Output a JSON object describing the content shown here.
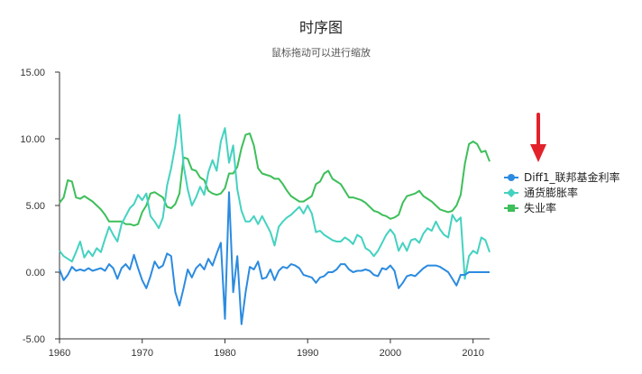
{
  "chart_data": {
    "type": "line",
    "title": "时序图",
    "subtitle": "鼠标拖动可以进行缩放",
    "xlim": [
      1960,
      2012
    ],
    "ylim": [
      -5,
      15
    ],
    "xticks": [
      1960,
      1970,
      1980,
      1990,
      2000,
      2010
    ],
    "yticks": [
      "15.00",
      "10.00",
      "5.00",
      "0.00",
      "-5.00"
    ],
    "legend_position": "right",
    "annotation": "red-down-arrow-pointing-at-legend",
    "series": [
      {
        "name": "Diff1_联邦基金利率",
        "color": "#2b8be0",
        "marker": "circle",
        "x": [
          1960.0,
          1960.5,
          1961.0,
          1961.5,
          1962.0,
          1962.5,
          1963.0,
          1963.5,
          1964.0,
          1964.5,
          1965.0,
          1965.5,
          1966.0,
          1966.5,
          1967.0,
          1967.5,
          1968.0,
          1968.5,
          1969.0,
          1969.5,
          1970.0,
          1970.5,
          1971.0,
          1971.5,
          1972.0,
          1972.5,
          1973.0,
          1973.5,
          1974.0,
          1974.5,
          1975.0,
          1975.5,
          1976.0,
          1976.5,
          1977.0,
          1977.5,
          1978.0,
          1978.5,
          1979.0,
          1979.5,
          1980.0,
          1980.5,
          1981.0,
          1981.5,
          1982.0,
          1982.5,
          1983.0,
          1983.5,
          1984.0,
          1984.5,
          1985.0,
          1985.5,
          1986.0,
          1986.5,
          1987.0,
          1987.5,
          1988.0,
          1988.5,
          1989.0,
          1989.5,
          1990.0,
          1990.5,
          1991.0,
          1991.5,
          1992.0,
          1992.5,
          1993.0,
          1993.5,
          1994.0,
          1994.5,
          1995.0,
          1995.5,
          1996.0,
          1996.5,
          1997.0,
          1997.5,
          1998.0,
          1998.5,
          1999.0,
          1999.5,
          2000.0,
          2000.5,
          2001.0,
          2001.5,
          2002.0,
          2002.5,
          2003.0,
          2003.5,
          2004.0,
          2004.5,
          2005.0,
          2005.5,
          2006.0,
          2006.5,
          2007.0,
          2007.5,
          2008.0,
          2008.5,
          2009.0,
          2009.5,
          2010.0,
          2010.5,
          2011.0,
          2011.5,
          2012.0
        ],
        "values": [
          0.2,
          -0.6,
          -0.2,
          0.4,
          0.1,
          0.2,
          0.1,
          0.3,
          0.1,
          0.2,
          0.3,
          0.1,
          0.6,
          0.3,
          -0.5,
          0.3,
          0.6,
          0.2,
          1.3,
          0.3,
          -0.6,
          -1.2,
          -0.3,
          0.8,
          0.3,
          0.5,
          1.4,
          1.2,
          -1.5,
          -2.5,
          -1.2,
          0.2,
          -0.4,
          0.3,
          0.6,
          0.2,
          1.0,
          0.5,
          1.4,
          2.2,
          -3.5,
          6.0,
          -1.5,
          1.2,
          -3.9,
          -1.5,
          0.4,
          0.2,
          0.8,
          -0.5,
          -0.4,
          0.2,
          -0.6,
          0.1,
          0.4,
          0.3,
          0.6,
          0.5,
          0.3,
          -0.2,
          -0.3,
          -0.4,
          -0.8,
          -0.4,
          -0.3,
          0.0,
          0.0,
          0.2,
          0.6,
          0.6,
          0.2,
          0.0,
          0.1,
          0.1,
          0.2,
          0.1,
          -0.2,
          -0.3,
          0.3,
          0.2,
          0.5,
          0.1,
          -1.2,
          -0.8,
          -0.3,
          -0.2,
          -0.3,
          0.0,
          0.3,
          0.5,
          0.5,
          0.5,
          0.4,
          0.2,
          0.0,
          -0.5,
          -1.0,
          -0.2,
          -0.2,
          0.0,
          0.0,
          0.0,
          0.0,
          0.0,
          0.0
        ]
      },
      {
        "name": "通货膨胀率",
        "color": "#44d2c0",
        "marker": "diamond",
        "x": [
          1960.0,
          1960.5,
          1961.0,
          1961.5,
          1962.0,
          1962.5,
          1963.0,
          1963.5,
          1964.0,
          1964.5,
          1965.0,
          1965.5,
          1966.0,
          1966.5,
          1967.0,
          1967.5,
          1968.0,
          1968.5,
          1969.0,
          1969.5,
          1970.0,
          1970.5,
          1971.0,
          1971.5,
          1972.0,
          1972.5,
          1973.0,
          1973.5,
          1974.0,
          1974.5,
          1975.0,
          1975.5,
          1976.0,
          1976.5,
          1977.0,
          1977.5,
          1978.0,
          1978.5,
          1979.0,
          1979.5,
          1980.0,
          1980.5,
          1981.0,
          1981.5,
          1982.0,
          1982.5,
          1983.0,
          1983.5,
          1984.0,
          1984.5,
          1985.0,
          1985.5,
          1986.0,
          1986.5,
          1987.0,
          1987.5,
          1988.0,
          1988.5,
          1989.0,
          1989.5,
          1990.0,
          1990.5,
          1991.0,
          1991.5,
          1992.0,
          1992.5,
          1993.0,
          1993.5,
          1994.0,
          1994.5,
          1995.0,
          1995.5,
          1996.0,
          1996.5,
          1997.0,
          1997.5,
          1998.0,
          1998.5,
          1999.0,
          1999.5,
          2000.0,
          2000.5,
          2001.0,
          2001.5,
          2002.0,
          2002.5,
          2003.0,
          2003.5,
          2004.0,
          2004.5,
          2005.0,
          2005.5,
          2006.0,
          2006.5,
          2007.0,
          2007.5,
          2008.0,
          2008.5,
          2009.0,
          2009.5,
          2010.0,
          2010.5,
          2011.0,
          2011.5,
          2012.0
        ],
        "values": [
          1.6,
          1.2,
          1.0,
          0.8,
          1.5,
          2.3,
          1.1,
          1.6,
          1.2,
          1.8,
          1.5,
          2.5,
          3.4,
          2.8,
          2.3,
          3.6,
          4.2,
          4.8,
          5.1,
          5.8,
          5.4,
          5.9,
          4.2,
          3.8,
          3.3,
          4.1,
          6.5,
          7.8,
          9.5,
          11.8,
          8.0,
          6.2,
          5.0,
          5.6,
          6.4,
          5.8,
          7.5,
          8.4,
          7.6,
          9.8,
          10.8,
          8.2,
          9.5,
          6.2,
          4.6,
          3.8,
          3.8,
          4.2,
          3.6,
          4.2,
          3.6,
          3.0,
          2.0,
          3.4,
          3.8,
          4.1,
          4.3,
          4.6,
          4.9,
          4.4,
          5.0,
          4.4,
          3.0,
          3.1,
          2.8,
          2.6,
          2.4,
          2.3,
          2.3,
          2.6,
          2.4,
          2.1,
          2.8,
          2.6,
          1.8,
          1.6,
          1.2,
          1.6,
          2.2,
          2.8,
          3.2,
          2.8,
          1.6,
          2.2,
          1.6,
          2.4,
          2.5,
          2.2,
          2.9,
          3.3,
          3.1,
          3.8,
          3.2,
          2.8,
          2.6,
          4.3,
          3.8,
          4.1,
          -0.5,
          1.2,
          1.6,
          1.4,
          2.6,
          2.4,
          1.5
        ]
      },
      {
        "name": "失业率",
        "color": "#3dbf5a",
        "marker": "square",
        "x": [
          1960.0,
          1960.5,
          1961.0,
          1961.5,
          1962.0,
          1962.5,
          1963.0,
          1963.5,
          1964.0,
          1964.5,
          1965.0,
          1965.5,
          1966.0,
          1966.5,
          1967.0,
          1967.5,
          1968.0,
          1968.5,
          1969.0,
          1969.5,
          1970.0,
          1970.5,
          1971.0,
          1971.5,
          1972.0,
          1972.5,
          1973.0,
          1973.5,
          1974.0,
          1974.5,
          1975.0,
          1975.5,
          1976.0,
          1976.5,
          1977.0,
          1977.5,
          1978.0,
          1978.5,
          1979.0,
          1979.5,
          1980.0,
          1980.5,
          1981.0,
          1981.5,
          1982.0,
          1982.5,
          1983.0,
          1983.5,
          1984.0,
          1984.5,
          1985.0,
          1985.5,
          1986.0,
          1986.5,
          1987.0,
          1987.5,
          1988.0,
          1988.5,
          1989.0,
          1989.5,
          1990.0,
          1990.5,
          1991.0,
          1991.5,
          1992.0,
          1992.5,
          1993.0,
          1993.5,
          1994.0,
          1994.5,
          1995.0,
          1995.5,
          1996.0,
          1996.5,
          1997.0,
          1997.5,
          1998.0,
          1998.5,
          1999.0,
          1999.5,
          2000.0,
          2000.5,
          2001.0,
          2001.5,
          2002.0,
          2002.5,
          2003.0,
          2003.5,
          2004.0,
          2004.5,
          2005.0,
          2005.5,
          2006.0,
          2006.5,
          2007.0,
          2007.5,
          2008.0,
          2008.5,
          2009.0,
          2009.5,
          2010.0,
          2010.5,
          2011.0,
          2011.5,
          2012.0
        ],
        "values": [
          5.2,
          5.6,
          6.9,
          6.8,
          5.6,
          5.5,
          5.7,
          5.5,
          5.3,
          5.0,
          4.7,
          4.3,
          3.8,
          3.8,
          3.8,
          3.8,
          3.6,
          3.6,
          3.5,
          3.6,
          4.5,
          5.0,
          5.9,
          6.0,
          5.8,
          5.6,
          4.9,
          4.8,
          5.1,
          5.9,
          8.6,
          8.5,
          7.7,
          7.6,
          7.1,
          6.9,
          6.1,
          5.9,
          5.8,
          5.9,
          6.3,
          7.4,
          7.4,
          7.9,
          9.3,
          10.3,
          10.4,
          9.5,
          7.8,
          7.4,
          7.3,
          7.2,
          7.0,
          7.0,
          6.6,
          6.1,
          5.7,
          5.5,
          5.3,
          5.3,
          5.5,
          5.7,
          6.6,
          6.8,
          7.4,
          7.6,
          7.0,
          6.8,
          6.6,
          6.1,
          5.6,
          5.6,
          5.5,
          5.4,
          5.2,
          4.9,
          4.6,
          4.5,
          4.3,
          4.2,
          4.0,
          4.1,
          4.3,
          5.2,
          5.7,
          5.8,
          5.9,
          6.1,
          5.7,
          5.5,
          5.3,
          5.0,
          4.7,
          4.6,
          4.5,
          4.6,
          5.0,
          5.8,
          8.1,
          9.6,
          9.8,
          9.6,
          9.0,
          9.1,
          8.3
        ]
      }
    ]
  }
}
